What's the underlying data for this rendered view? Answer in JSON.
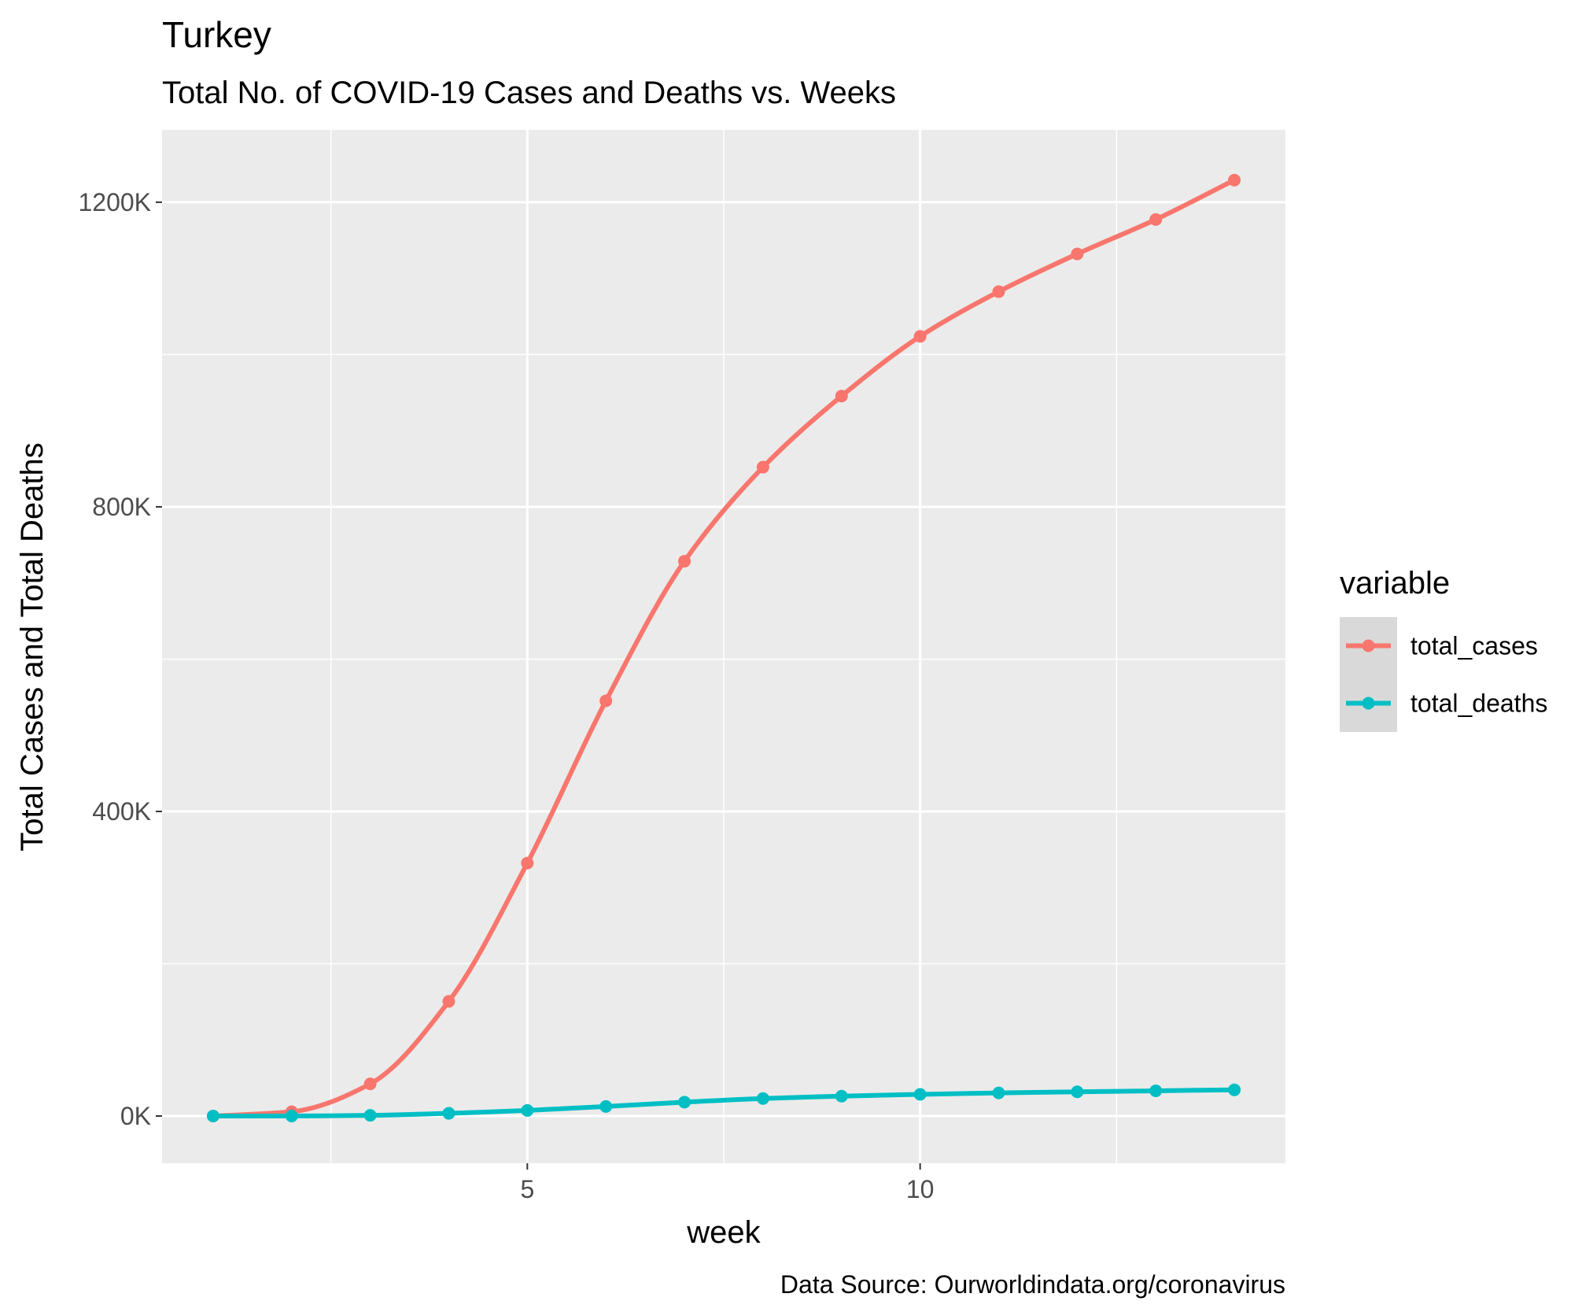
{
  "chart_data": {
    "type": "line",
    "title": "Turkey",
    "subtitle": "Total No. of COVID-19 Cases and Deaths vs. Weeks",
    "xlabel": "week",
    "ylabel": "Total Cases and Total Deaths",
    "caption": "Data Source: Ourworldindata.org/coronavirus",
    "x": [
      1,
      2,
      3,
      4,
      5,
      6,
      7,
      8,
      9,
      10,
      11,
      12,
      13,
      14
    ],
    "xlim": [
      0.35,
      14.65
    ],
    "ylim": [
      -62000,
      1295000
    ],
    "x_ticks": [
      5,
      10
    ],
    "x_tick_labels": [
      "5",
      "10"
    ],
    "y_ticks": [
      0,
      400000,
      800000,
      1200000
    ],
    "y_tick_labels": [
      "0K",
      "400K",
      "800K",
      "1200K"
    ],
    "grid": true,
    "smoothed": true,
    "series": [
      {
        "name": "total_cases",
        "color": "#F8766D",
        "values": [
          0,
          5698,
          42282,
          150593,
          332210,
          545165,
          728568,
          852076,
          945430,
          1023826,
          1082578,
          1132079,
          1177285,
          1229012
        ]
      },
      {
        "name": "total_deaths",
        "color": "#00BFC4",
        "values": [
          0,
          92,
          908,
          3589,
          7329,
          12527,
          18263,
          23054,
          26106,
          28456,
          30374,
          31810,
          33146,
          34434
        ]
      }
    ],
    "legend": {
      "title": "variable",
      "position": "right",
      "entries": [
        "total_cases",
        "total_deaths"
      ]
    },
    "colors": {
      "panel_background": "#EBEBEB",
      "grid_line": "#FFFFFF",
      "legend_key_background": "#D9D9D9",
      "tick_text": "#4D4D4D",
      "text": "#000000"
    }
  }
}
